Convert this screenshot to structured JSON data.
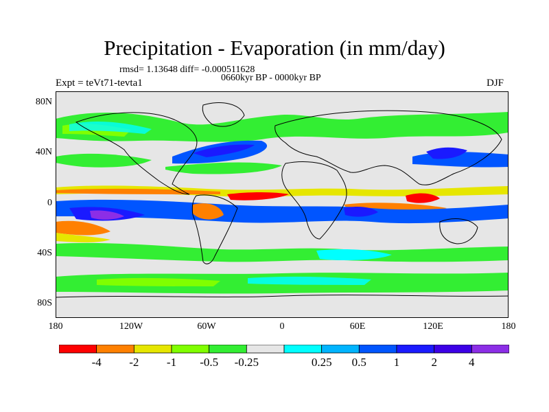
{
  "title": "Precipitation - Evaporation (in mm/day)",
  "stats": "rmsd= 1.13648 diff= -0.000511628",
  "period": "0660kyr BP - 0000kyr BP",
  "experiment": "Expt = teVt71-tevta1",
  "season": "DJF",
  "axes": {
    "y_ticks": [
      "80N",
      "40N",
      "0",
      "40S",
      "80S"
    ],
    "x_ticks": [
      "180",
      "120W",
      "60W",
      "0",
      "60E",
      "120E",
      "180"
    ]
  },
  "colorbar": {
    "colors": [
      "#ff0000",
      "#ff8000",
      "#e6e600",
      "#80ff00",
      "#33ee33",
      "#e6e6e6",
      "#00ffff",
      "#00b4ff",
      "#0055ff",
      "#1a1aff",
      "#3c00e6",
      "#8c2ee6"
    ],
    "labels": [
      "-4",
      "-2",
      "-1",
      "-0.5",
      "-0.25",
      "0.25",
      "0.5",
      "1",
      "2",
      "4"
    ]
  }
}
